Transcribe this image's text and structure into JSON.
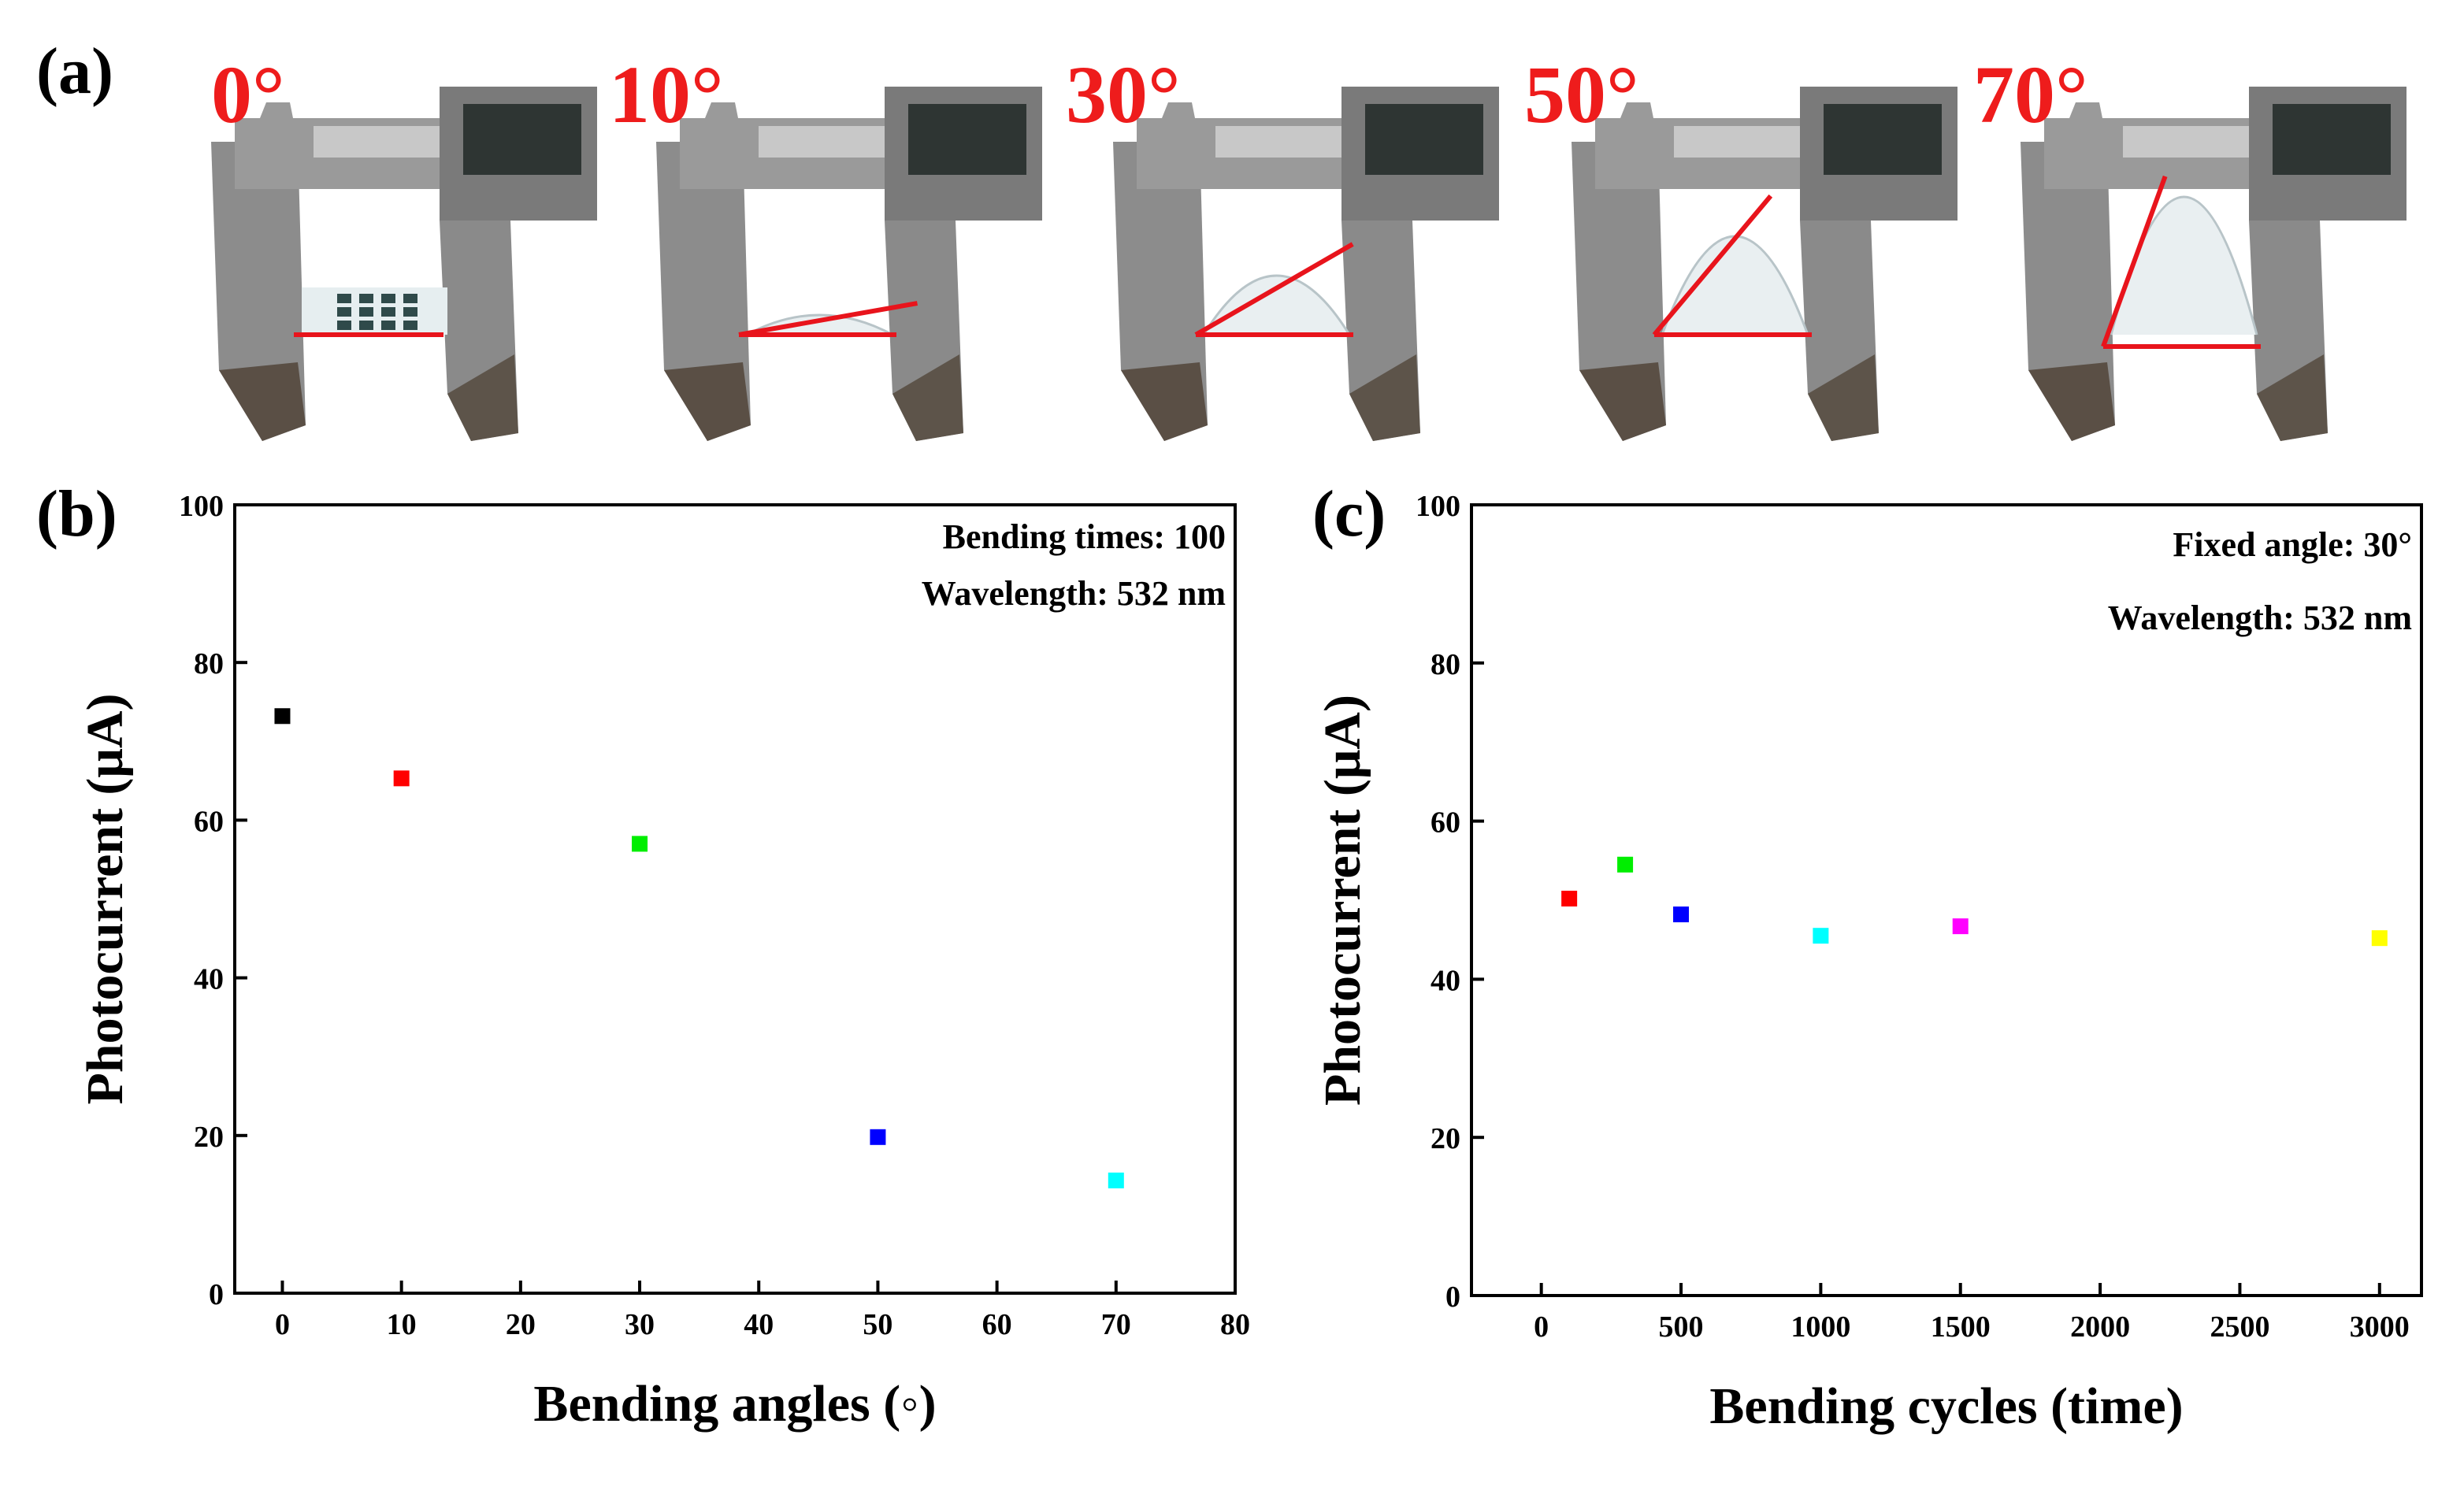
{
  "colors": {
    "angle_label": "#ee1c1c",
    "red_line": "#e8141c",
    "marker_palette": [
      "#000000",
      "#ff0000",
      "#00ee00",
      "#0000ff",
      "#00ffff",
      "#ff00ff",
      "#ffff00"
    ]
  },
  "panel_a": {
    "label": "(a)",
    "photos": [
      {
        "angle_label": "0°",
        "bend": 0
      },
      {
        "angle_label": "10°",
        "bend": 10
      },
      {
        "angle_label": "30°",
        "bend": 30
      },
      {
        "angle_label": "50°",
        "bend": 50
      },
      {
        "angle_label": "70°",
        "bend": 70
      }
    ]
  },
  "chart_data": [
    {
      "panel_label": "(b)",
      "type": "scatter",
      "xlabel": "Bending angles (◦)",
      "ylabel": "Photocurrent (μA)",
      "xlim": [
        -4,
        80
      ],
      "ylim": [
        0,
        100
      ],
      "xticks": [
        0,
        10,
        20,
        30,
        40,
        50,
        60,
        70,
        80
      ],
      "yticks": [
        0,
        20,
        40,
        60,
        80,
        100
      ],
      "annotations": [
        "Bending times: 100",
        "Wavelength: 532 nm"
      ],
      "points": [
        {
          "x": 0,
          "y": 73.2,
          "color": "#000000"
        },
        {
          "x": 10,
          "y": 65.3,
          "color": "#ff0000"
        },
        {
          "x": 30,
          "y": 57.0,
          "color": "#00ee00"
        },
        {
          "x": 50,
          "y": 19.8,
          "color": "#0000ff"
        },
        {
          "x": 70,
          "y": 14.3,
          "color": "#00ffff"
        }
      ]
    },
    {
      "panel_label": "(c)",
      "type": "scatter",
      "xlabel": "Bending cycles (time)",
      "ylabel": "Photocurrent (μA)",
      "xlim": [
        -250,
        3150
      ],
      "ylim": [
        0,
        100
      ],
      "xticks": [
        0,
        500,
        1000,
        1500,
        2000,
        2500,
        3000
      ],
      "yticks": [
        0,
        20,
        40,
        60,
        80,
        100
      ],
      "annotations": [
        "Fixed angle: 30°",
        "Wavelength: 532 nm"
      ],
      "points": [
        {
          "x": 100,
          "y": 50.2,
          "color": "#ff0000"
        },
        {
          "x": 300,
          "y": 54.5,
          "color": "#00ee00"
        },
        {
          "x": 500,
          "y": 48.2,
          "color": "#0000ff"
        },
        {
          "x": 1000,
          "y": 45.5,
          "color": "#00ffff"
        },
        {
          "x": 1500,
          "y": 46.7,
          "color": "#ff00ff"
        },
        {
          "x": 3000,
          "y": 45.2,
          "color": "#ffff00"
        }
      ]
    }
  ]
}
